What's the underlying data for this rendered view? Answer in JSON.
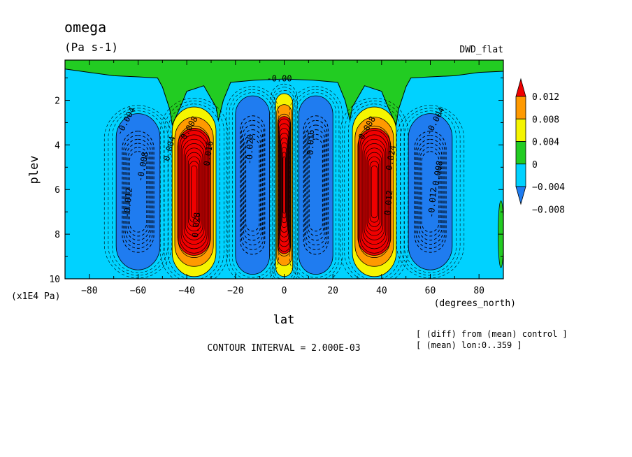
{
  "chart_data": {
    "type": "heatmap",
    "title": "omega",
    "units": "(Pa s-1)",
    "dataset": "DWD_flat",
    "xlabel": "lat",
    "x_units": "(degrees_north)",
    "ylabel": "plev",
    "y_units": "(x1E4 Pa)",
    "xlim": [
      -90,
      90
    ],
    "ylim": [
      10,
      0.2
    ],
    "x_ticks": [
      -80,
      -60,
      -40,
      -20,
      0,
      20,
      40,
      60,
      80
    ],
    "x_tick_labels": [
      "−80",
      "−60",
      "−40",
      "−20",
      "0",
      "20",
      "40",
      "60",
      "80"
    ],
    "y_ticks": [
      2,
      4,
      6,
      8,
      10
    ],
    "y_tick_labels": [
      "2",
      "4",
      "6",
      "8",
      "10"
    ],
    "contour_interval_text": "CONTOUR INTERVAL = 2.000E-03",
    "notes": [
      "[ (diff) from (mean) control ]",
      "[ (mean) lon:0..359 ]"
    ],
    "contour_labels": [
      "-0.00",
      "-0.004",
      "-0.012",
      "-0.008",
      "0.008",
      "0.028",
      "0.004",
      "0.012",
      "0.024",
      "-0.020",
      "-0.016",
      "0.016"
    ],
    "colorbar": {
      "levels": [
        -0.012,
        -0.008,
        -0.004,
        0,
        0.004,
        0.008,
        0.012
      ],
      "labels": [
        "0.012",
        "0.008",
        "0.004",
        "0",
        "−0.004",
        "−0.008"
      ],
      "colors": [
        "#1f7cf0",
        "#00d2ff",
        "#22cc22",
        "#f5f500",
        "#ff9a00",
        "#f00000"
      ]
    },
    "features": [
      {
        "name": "equatorial-updraft-core",
        "sign": "positive",
        "lat_center": 0,
        "lat_halfwidth": 3.5,
        "plev_top": 1.7,
        "plev_bottom": 9.9,
        "peak": 0.05
      },
      {
        "name": "south-subtropical-positive-cell",
        "sign": "positive",
        "lat_center": -37,
        "lat_halfwidth": 9,
        "plev_top": 2.3,
        "plev_bottom": 9.9,
        "peak": 0.03
      },
      {
        "name": "north-subtropical-positive-cell",
        "sign": "positive",
        "lat_center": 37,
        "lat_halfwidth": 9,
        "plev_top": 2.3,
        "plev_bottom": 9.9,
        "peak": 0.03
      },
      {
        "name": "south-tropical-negative-cell",
        "sign": "negative",
        "lat_center": -13,
        "lat_halfwidth": 7,
        "plev_top": 1.8,
        "plev_bottom": 9.8,
        "peak": -0.024
      },
      {
        "name": "north-tropical-negative-cell",
        "sign": "negative",
        "lat_center": 13,
        "lat_halfwidth": 7,
        "plev_top": 1.8,
        "plev_bottom": 9.8,
        "peak": -0.024
      },
      {
        "name": "south-midlat-negative-cell",
        "sign": "negative",
        "lat_center": -60,
        "lat_halfwidth": 9,
        "plev_top": 2.6,
        "plev_bottom": 9.6,
        "peak": -0.014
      },
      {
        "name": "north-midlat-negative-cell",
        "sign": "negative",
        "lat_center": 60,
        "lat_halfwidth": 9,
        "plev_top": 2.6,
        "plev_bottom": 9.6,
        "peak": -0.014
      }
    ]
  },
  "colors": {
    "background": "#ffffff",
    "frame": "#000000"
  }
}
